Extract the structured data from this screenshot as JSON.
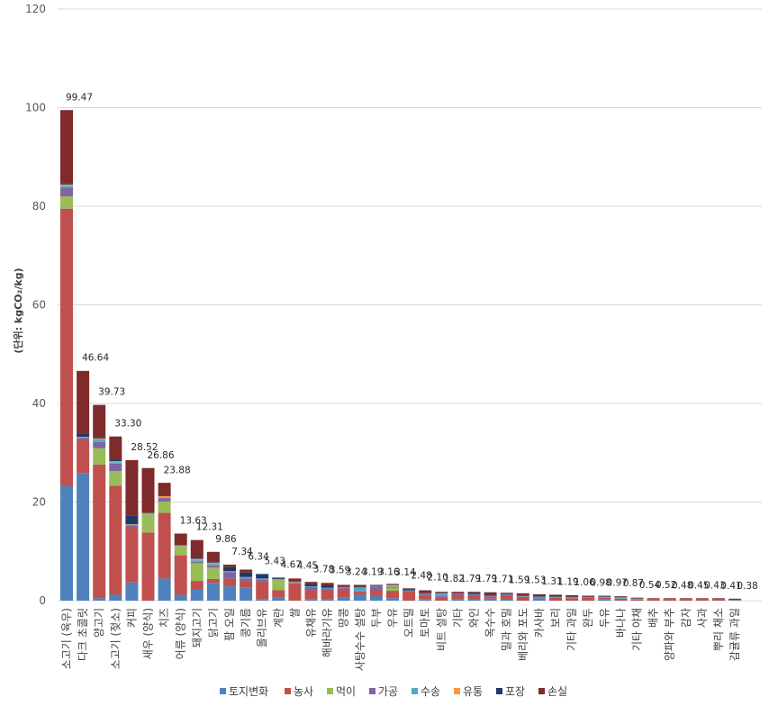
{
  "chart_data": {
    "type": "bar",
    "stacked": true,
    "ylabel": "(단위: kgCO₂/kg)",
    "ylim": [
      0,
      120
    ],
    "yticks": [
      0,
      20,
      40,
      60,
      80,
      100,
      120
    ],
    "grid": true,
    "legend_position": "bottom",
    "categories": [
      "소고기 (육우)",
      "다크 초콜릿",
      "양고기",
      "소고기 (젖소)",
      "커피",
      "새우 (양식)",
      "치즈",
      "어류 (양식)",
      "돼지고기",
      "닭고기",
      "팜 오일",
      "콩기름",
      "올리브유",
      "계란",
      "쌀",
      "유채유",
      "해바라기유",
      "땅콩",
      "사탕수수 설탕",
      "두부",
      "우유",
      "오트밀",
      "토마토",
      "비트 설탕",
      "기타",
      "와인",
      "옥수수",
      "밀과 호밀",
      "베리와 포도",
      "카사바",
      "보리",
      "기타 과일",
      "완두",
      "두유",
      "바나나",
      "기타 야채",
      "배추",
      "양파와 부추",
      "감자",
      "사과",
      "뿌리 채소",
      "감귤류 과일"
    ],
    "totals": [
      99.47,
      46.64,
      39.73,
      33.3,
      28.52,
      26.86,
      23.88,
      13.63,
      12.31,
      9.86,
      7.34,
      6.34,
      5.43,
      4.67,
      4.45,
      3.78,
      3.59,
      3.24,
      3.19,
      3.16,
      3.14,
      2.48,
      2.1,
      1.82,
      1.79,
      1.79,
      1.71,
      1.59,
      1.53,
      1.31,
      1.19,
      1.06,
      0.98,
      0.97,
      0.87,
      0.54,
      0.52,
      0.48,
      0.45,
      0.43,
      0.41,
      0.38
    ],
    "total_labels": [
      "99.47",
      "46.64",
      "39.73",
      "33.30",
      "28.52",
      "26.86",
      "23.88",
      "13.63",
      "12.31",
      "9.86",
      "7.34",
      "6.34",
      "5.43",
      "4.67",
      "4.45",
      "3.78",
      "3.59",
      "3.24",
      "3.19",
      "3.16",
      "3.14",
      "2.48",
      "2.10",
      "1.82",
      "1.79",
      "1.79",
      "1.71",
      "1.59",
      "1.53",
      "1.31",
      "1.19",
      "1.06",
      "0.98",
      "0.97",
      "0.87",
      "0.54",
      "0.52",
      "0.48",
      "0.45",
      "0.43",
      "0.41",
      "0.38"
    ],
    "series": [
      {
        "name": "토지변화",
        "color": "#4f81bd",
        "values": [
          23.2,
          25.9,
          0.5,
          1.2,
          3.7,
          0,
          4.5,
          1.2,
          2.2,
          3.6,
          2.9,
          2.7,
          0.3,
          0.6,
          0,
          0.3,
          0.3,
          0.6,
          1.2,
          1.0,
          0.5,
          0,
          0.3,
          0,
          0.3,
          0.2,
          0.4,
          0.2,
          0,
          0.5,
          0,
          0,
          0,
          0.3,
          0,
          0,
          0,
          0,
          0,
          0,
          0,
          0
        ]
      },
      {
        "name": "농사",
        "color": "#c0504d",
        "values": [
          56.3,
          6.7,
          27.1,
          22.1,
          11.0,
          13.8,
          13.3,
          8.0,
          1.8,
          0.8,
          1.6,
          1.3,
          3.7,
          1.5,
          3.5,
          1.8,
          1.8,
          1.6,
          0.6,
          1.1,
          1.5,
          1.9,
          0.9,
          0.7,
          0.9,
          0.9,
          0.4,
          0.8,
          0.8,
          0.2,
          0.6,
          0.5,
          0.6,
          0.3,
          0.4,
          0.2,
          0.2,
          0.2,
          0.2,
          0.2,
          0.2,
          0.1
        ]
      },
      {
        "name": "먹이",
        "color": "#9bbb59",
        "values": [
          2.5,
          0,
          3.3,
          3.0,
          0,
          3.7,
          2.3,
          1.8,
          3.6,
          2.3,
          0,
          0,
          0,
          2.2,
          0,
          0,
          0,
          0,
          0,
          0,
          0.6,
          0,
          0,
          0,
          0,
          0,
          0,
          0,
          0,
          0,
          0,
          0,
          0,
          0,
          0,
          0,
          0,
          0,
          0,
          0,
          0,
          0
        ]
      },
      {
        "name": "가공",
        "color": "#8064a2",
        "values": [
          1.8,
          0.4,
          1.3,
          1.5,
          0.6,
          0,
          0.7,
          0,
          0.3,
          0.4,
          1.3,
          0.5,
          0.2,
          0,
          0.1,
          0.7,
          0.4,
          0.4,
          0.1,
          0.8,
          0.2,
          0.1,
          0,
          0.2,
          0.1,
          0.1,
          0.1,
          0.2,
          0,
          0,
          0.1,
          0,
          0,
          0.1,
          0,
          0,
          0,
          0,
          0,
          0,
          0,
          0
        ]
      },
      {
        "name": "수송",
        "color": "#4bacc6",
        "values": [
          0.3,
          0.1,
          0.5,
          0.3,
          0.1,
          0.2,
          0.1,
          0.1,
          0.3,
          0.3,
          0.2,
          0.3,
          0.3,
          0.1,
          0.1,
          0.1,
          0.1,
          0.1,
          0.8,
          0.1,
          0.1,
          0.1,
          0.2,
          0.6,
          0.1,
          0.1,
          0.1,
          0.1,
          0.2,
          0.1,
          0.1,
          0.2,
          0.1,
          0.1,
          0.3,
          0.2,
          0.1,
          0.1,
          0.1,
          0.1,
          0.1,
          0.1
        ]
      },
      {
        "name": "유통",
        "color": "#f79646",
        "values": [
          0.3,
          0.1,
          0.2,
          0.2,
          0.1,
          0.1,
          0.3,
          0.1,
          0.3,
          0.3,
          0,
          0,
          0,
          0,
          0.1,
          0,
          0,
          0,
          0,
          0,
          0.3,
          0,
          0,
          0,
          0,
          0,
          0,
          0,
          0,
          0,
          0,
          0,
          0,
          0,
          0,
          0,
          0,
          0,
          0,
          0,
          0,
          0
        ]
      },
      {
        "name": "포장",
        "color": "#1f3864",
        "values": [
          0.3,
          0.6,
          0.3,
          0.3,
          1.8,
          0.1,
          0.1,
          0.1,
          0.4,
          0.3,
          0.8,
          0.9,
          0.9,
          0.2,
          0.1,
          0.5,
          0.5,
          0.1,
          0.1,
          0.1,
          0.1,
          0.1,
          0.1,
          0.1,
          0.1,
          0.3,
          0.2,
          0.1,
          0.1,
          0.1,
          0.3,
          0.1,
          0.1,
          0.1,
          0.1,
          0.1,
          0.1,
          0.1,
          0.1,
          0.1,
          0.1,
          0.1
        ]
      },
      {
        "name": "손실",
        "color": "#7f2b2b",
        "values": [
          14.8,
          12.8,
          6.5,
          4.7,
          11.2,
          9.0,
          2.6,
          2.3,
          3.4,
          1.9,
          0.5,
          0.6,
          0,
          0.1,
          0.6,
          0.4,
          0.5,
          0.4,
          0.4,
          0.1,
          0.1,
          0.3,
          0.6,
          0.2,
          0.3,
          0.2,
          0.5,
          0.2,
          0.4,
          0.4,
          0.1,
          0.3,
          0.2,
          0.1,
          0.1,
          0.1,
          0.1,
          0.1,
          0.1,
          0.1,
          0.1,
          0.1
        ]
      }
    ]
  }
}
